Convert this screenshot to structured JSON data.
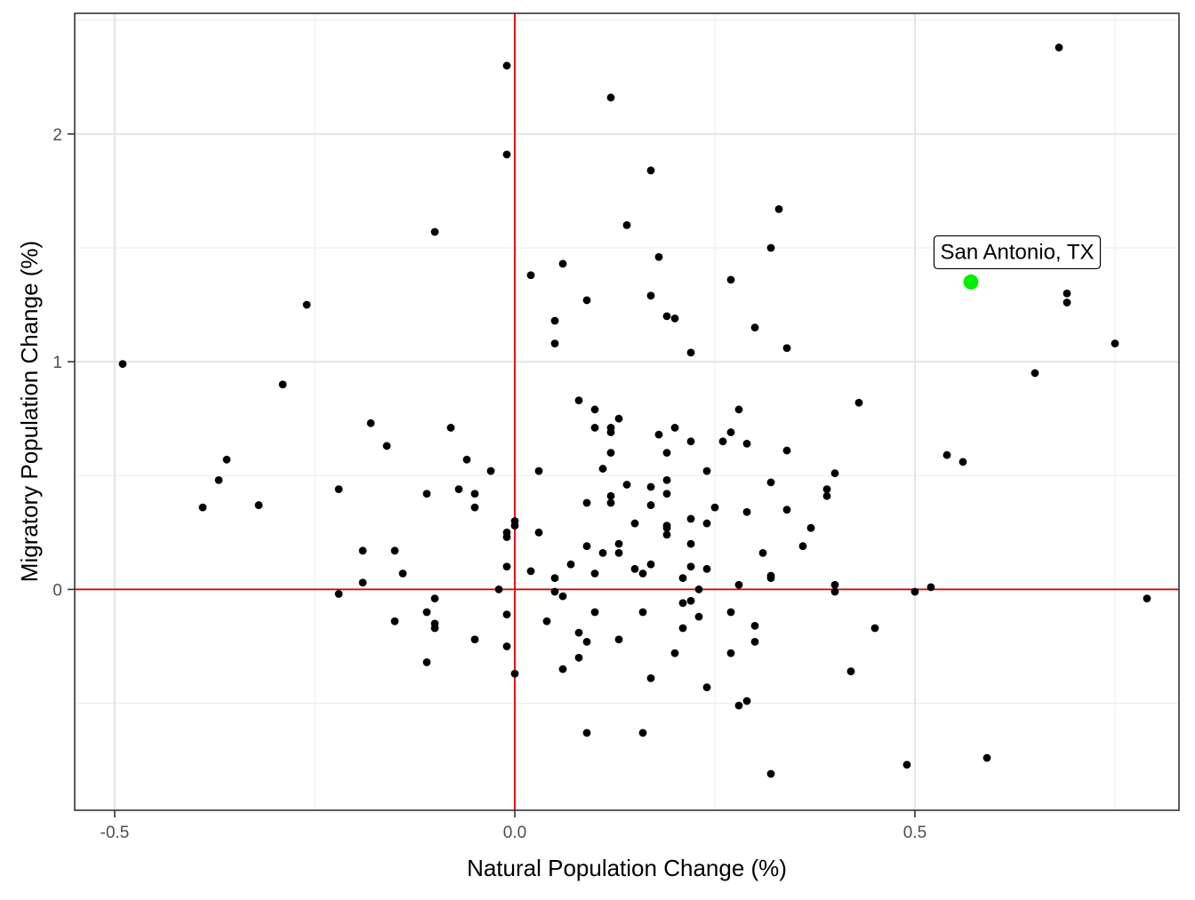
{
  "chart_data": {
    "type": "scatter",
    "title": "",
    "xlabel": "Natural Population Change (%)",
    "ylabel": "Migratory Population Change (%)",
    "xlim": [
      -0.55,
      0.83
    ],
    "ylim": [
      -0.97,
      2.53
    ],
    "x_ticks": [
      {
        "value": -0.5,
        "label": "-0.5"
      },
      {
        "value": 0.0,
        "label": "0.0"
      },
      {
        "value": 0.5,
        "label": "0.5"
      }
    ],
    "y_ticks": [
      {
        "value": 0,
        "label": "0"
      },
      {
        "value": 1,
        "label": "1"
      },
      {
        "value": 2,
        "label": "2"
      }
    ],
    "grid": true,
    "reference_lines": {
      "x": 0,
      "y": 0,
      "color": "#dd0000"
    },
    "point_color": "#000000",
    "points": [
      [
        -0.49,
        0.99
      ],
      [
        -0.39,
        0.36
      ],
      [
        -0.37,
        0.48
      ],
      [
        -0.36,
        0.57
      ],
      [
        -0.32,
        0.37
      ],
      [
        -0.29,
        0.9
      ],
      [
        -0.26,
        1.25
      ],
      [
        -0.22,
        0.44
      ],
      [
        -0.22,
        -0.02
      ],
      [
        -0.19,
        0.17
      ],
      [
        -0.19,
        0.03
      ],
      [
        -0.18,
        0.73
      ],
      [
        -0.16,
        0.63
      ],
      [
        -0.15,
        0.17
      ],
      [
        -0.15,
        -0.14
      ],
      [
        -0.14,
        0.07
      ],
      [
        -0.11,
        0.42
      ],
      [
        -0.11,
        -0.1
      ],
      [
        -0.11,
        -0.32
      ],
      [
        -0.1,
        1.57
      ],
      [
        -0.1,
        -0.04
      ],
      [
        -0.1,
        -0.15
      ],
      [
        -0.1,
        -0.17
      ],
      [
        -0.08,
        0.71
      ],
      [
        -0.07,
        0.44
      ],
      [
        -0.06,
        0.57
      ],
      [
        -0.05,
        0.42
      ],
      [
        -0.05,
        0.36
      ],
      [
        -0.05,
        -0.22
      ],
      [
        -0.03,
        0.52
      ],
      [
        -0.02,
        0.0
      ],
      [
        -0.01,
        2.3
      ],
      [
        -0.01,
        1.91
      ],
      [
        -0.01,
        0.25
      ],
      [
        -0.01,
        0.23
      ],
      [
        -0.01,
        0.1
      ],
      [
        -0.01,
        -0.11
      ],
      [
        -0.01,
        -0.25
      ],
      [
        0.0,
        0.3
      ],
      [
        0.0,
        0.28
      ],
      [
        0.0,
        -0.37
      ],
      [
        0.02,
        1.38
      ],
      [
        0.02,
        0.08
      ],
      [
        0.03,
        0.52
      ],
      [
        0.03,
        0.25
      ],
      [
        0.04,
        -0.14
      ],
      [
        0.05,
        1.18
      ],
      [
        0.05,
        1.08
      ],
      [
        0.05,
        0.05
      ],
      [
        0.05,
        -0.01
      ],
      [
        0.06,
        1.43
      ],
      [
        0.06,
        -0.03
      ],
      [
        0.06,
        -0.35
      ],
      [
        0.07,
        0.11
      ],
      [
        0.08,
        0.83
      ],
      [
        0.08,
        -0.19
      ],
      [
        0.08,
        -0.3
      ],
      [
        0.09,
        1.27
      ],
      [
        0.09,
        0.38
      ],
      [
        0.09,
        0.19
      ],
      [
        0.09,
        -0.23
      ],
      [
        0.09,
        -0.63
      ],
      [
        0.1,
        0.79
      ],
      [
        0.1,
        0.71
      ],
      [
        0.1,
        0.07
      ],
      [
        0.1,
        -0.1
      ],
      [
        0.11,
        0.53
      ],
      [
        0.11,
        0.16
      ],
      [
        0.12,
        2.16
      ],
      [
        0.12,
        0.71
      ],
      [
        0.12,
        0.69
      ],
      [
        0.12,
        0.6
      ],
      [
        0.12,
        0.41
      ],
      [
        0.12,
        0.38
      ],
      [
        0.13,
        0.75
      ],
      [
        0.13,
        0.2
      ],
      [
        0.13,
        0.16
      ],
      [
        0.13,
        -0.22
      ],
      [
        0.14,
        1.6
      ],
      [
        0.14,
        0.46
      ],
      [
        0.15,
        0.29
      ],
      [
        0.15,
        0.09
      ],
      [
        0.16,
        0.07
      ],
      [
        0.16,
        -0.1
      ],
      [
        0.16,
        -0.63
      ],
      [
        0.17,
        1.84
      ],
      [
        0.17,
        1.29
      ],
      [
        0.17,
        0.45
      ],
      [
        0.17,
        0.37
      ],
      [
        0.17,
        0.11
      ],
      [
        0.17,
        -0.39
      ],
      [
        0.18,
        1.46
      ],
      [
        0.18,
        0.68
      ],
      [
        0.19,
        1.2
      ],
      [
        0.19,
        0.6
      ],
      [
        0.19,
        0.48
      ],
      [
        0.19,
        0.42
      ],
      [
        0.19,
        0.28
      ],
      [
        0.19,
        0.27
      ],
      [
        0.19,
        0.24
      ],
      [
        0.2,
        1.19
      ],
      [
        0.2,
        0.71
      ],
      [
        0.2,
        -0.28
      ],
      [
        0.21,
        0.05
      ],
      [
        0.21,
        -0.06
      ],
      [
        0.21,
        -0.17
      ],
      [
        0.22,
        1.04
      ],
      [
        0.22,
        0.65
      ],
      [
        0.22,
        0.31
      ],
      [
        0.22,
        0.2
      ],
      [
        0.22,
        0.1
      ],
      [
        0.22,
        -0.05
      ],
      [
        0.23,
        0.0
      ],
      [
        0.23,
        -0.12
      ],
      [
        0.24,
        0.52
      ],
      [
        0.24,
        0.29
      ],
      [
        0.24,
        0.09
      ],
      [
        0.24,
        -0.43
      ],
      [
        0.25,
        0.36
      ],
      [
        0.26,
        0.65
      ],
      [
        0.27,
        1.36
      ],
      [
        0.27,
        0.69
      ],
      [
        0.27,
        -0.28
      ],
      [
        0.27,
        -0.1
      ],
      [
        0.28,
        0.79
      ],
      [
        0.28,
        0.02
      ],
      [
        0.28,
        -0.51
      ],
      [
        0.29,
        0.64
      ],
      [
        0.29,
        0.34
      ],
      [
        0.29,
        -0.49
      ],
      [
        0.3,
        1.15
      ],
      [
        0.3,
        -0.16
      ],
      [
        0.3,
        -0.23
      ],
      [
        0.31,
        0.16
      ],
      [
        0.32,
        1.5
      ],
      [
        0.32,
        0.47
      ],
      [
        0.32,
        0.06
      ],
      [
        0.32,
        0.05
      ],
      [
        0.32,
        -0.81
      ],
      [
        0.33,
        1.67
      ],
      [
        0.34,
        1.06
      ],
      [
        0.34,
        0.61
      ],
      [
        0.34,
        0.35
      ],
      [
        0.36,
        0.19
      ],
      [
        0.37,
        0.27
      ],
      [
        0.39,
        0.44
      ],
      [
        0.39,
        0.41
      ],
      [
        0.4,
        0.51
      ],
      [
        0.4,
        0.02
      ],
      [
        0.4,
        -0.01
      ],
      [
        0.42,
        -0.36
      ],
      [
        0.43,
        0.82
      ],
      [
        0.45,
        -0.17
      ],
      [
        0.49,
        -0.77
      ],
      [
        0.5,
        -0.01
      ],
      [
        0.52,
        0.01
      ],
      [
        0.54,
        0.59
      ],
      [
        0.56,
        0.56
      ],
      [
        0.59,
        -0.74
      ],
      [
        0.65,
        0.95
      ],
      [
        0.68,
        2.38
      ],
      [
        0.69,
        1.3
      ],
      [
        0.69,
        1.26
      ],
      [
        0.75,
        1.08
      ],
      [
        0.79,
        -0.04
      ]
    ],
    "highlight": {
      "label": "San Antonio, TX",
      "x": 0.57,
      "y": 1.35,
      "color": "#00ee00"
    }
  }
}
